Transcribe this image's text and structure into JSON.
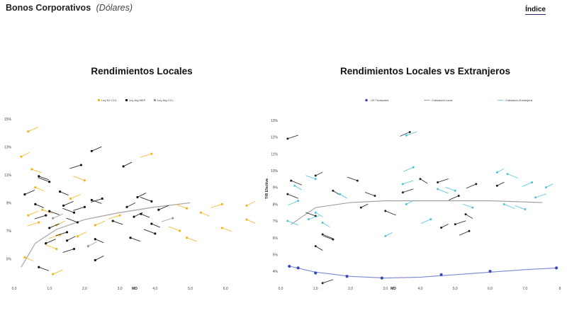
{
  "header": {
    "title": "Bonos Corporativos",
    "subtitle": "(Dólares)",
    "index_link": "Índice"
  },
  "colors": {
    "ley_ny_ccl": "#f2b61d",
    "ley_arg_mep": "#111111",
    "ley_arg_ccl": "#9a9a9a",
    "local": "#222222",
    "extranjera": "#4fc3dc",
    "treasuries": "#3b49b8"
  },
  "chart_data": [
    {
      "type": "scatter",
      "title": "Rendimientos Locales",
      "xlabel": "MD",
      "ylabel": "",
      "xlim": [
        0,
        6.8
      ],
      "ylim": [
        3.5,
        15.5
      ],
      "xticks": [
        "0,0",
        "1,0",
        "2,0",
        "3,0",
        "4,0",
        "5,0",
        "6,0"
      ],
      "yticks": [
        "5%",
        "7%",
        "9%",
        "11%",
        "13%",
        "15%"
      ],
      "grid": false,
      "legend_position": "top",
      "series": [
        {
          "name": "Ley NY CCL",
          "points": [
            {
              "x": 0.4,
              "y": 14.1
            },
            {
              "x": 3.9,
              "y": 12.5
            },
            {
              "x": 0.2,
              "y": 12.3
            },
            {
              "x": 0.5,
              "y": 11.4
            },
            {
              "x": 2.0,
              "y": 10.6
            },
            {
              "x": 0.6,
              "y": 10.1
            },
            {
              "x": 1.6,
              "y": 9.3
            },
            {
              "x": 5.9,
              "y": 8.9
            },
            {
              "x": 6.6,
              "y": 8.8
            },
            {
              "x": 0.8,
              "y": 8.5
            },
            {
              "x": 4.9,
              "y": 8.6
            },
            {
              "x": 5.3,
              "y": 8.3
            },
            {
              "x": 0.4,
              "y": 8.1
            },
            {
              "x": 0.7,
              "y": 7.6
            },
            {
              "x": 1.2,
              "y": 7.4
            },
            {
              "x": 5.9,
              "y": 7.2
            },
            {
              "x": 4.7,
              "y": 7.0
            },
            {
              "x": 6.6,
              "y": 7.8
            },
            {
              "x": 2.3,
              "y": 7.4
            },
            {
              "x": 1.3,
              "y": 6.7
            },
            {
              "x": 1.8,
              "y": 6.6
            },
            {
              "x": 4.9,
              "y": 6.5
            },
            {
              "x": 1.2,
              "y": 5.7
            },
            {
              "x": 0.3,
              "y": 5.1
            },
            {
              "x": 1.1,
              "y": 3.9
            },
            {
              "x": 3.0,
              "y": 8.1
            }
          ]
        },
        {
          "name": "Ley Arg MEP",
          "points": [
            {
              "x": 2.2,
              "y": 12.7
            },
            {
              "x": 1.9,
              "y": 11.7
            },
            {
              "x": 3.1,
              "y": 11.6
            },
            {
              "x": 0.7,
              "y": 10.9
            },
            {
              "x": 1.0,
              "y": 10.5
            },
            {
              "x": 1.3,
              "y": 9.8
            },
            {
              "x": 0.3,
              "y": 9.6
            },
            {
              "x": 2.5,
              "y": 9.3
            },
            {
              "x": 3.5,
              "y": 9.4
            },
            {
              "x": 2.2,
              "y": 9.2
            },
            {
              "x": 3.9,
              "y": 9.1
            },
            {
              "x": 0.6,
              "y": 8.9
            },
            {
              "x": 1.4,
              "y": 8.8
            },
            {
              "x": 2.0,
              "y": 8.7
            },
            {
              "x": 3.2,
              "y": 8.7
            },
            {
              "x": 1.0,
              "y": 8.4
            },
            {
              "x": 1.7,
              "y": 8.3
            },
            {
              "x": 3.6,
              "y": 8.2
            },
            {
              "x": 4.1,
              "y": 8.5
            },
            {
              "x": 0.9,
              "y": 8.1
            },
            {
              "x": 3.4,
              "y": 8.0
            },
            {
              "x": 2.8,
              "y": 7.7
            },
            {
              "x": 1.8,
              "y": 7.6
            },
            {
              "x": 3.9,
              "y": 7.5
            },
            {
              "x": 1.0,
              "y": 7.2
            },
            {
              "x": 1.5,
              "y": 6.9
            },
            {
              "x": 1.5,
              "y": 6.3
            },
            {
              "x": 3.3,
              "y": 6.5
            },
            {
              "x": 4.0,
              "y": 6.8
            },
            {
              "x": 2.3,
              "y": 6.4
            },
            {
              "x": 0.9,
              "y": 6.1
            },
            {
              "x": 1.7,
              "y": 5.7
            },
            {
              "x": 2.3,
              "y": 4.9
            },
            {
              "x": 0.7,
              "y": 4.4
            }
          ]
        },
        {
          "name": "Ley Arg CCL",
          "points": [
            {
              "x": 1.1,
              "y": 7.9
            },
            {
              "x": 4.5,
              "y": 7.9
            },
            {
              "x": 2.1,
              "y": 5.9
            }
          ]
        }
      ],
      "trend": {
        "x": [
          0.2,
          0.6,
          1.2,
          2.0,
          3.0,
          4.0,
          5.0
        ],
        "y": [
          4.4,
          6.1,
          7.1,
          7.8,
          8.3,
          8.7,
          9.0
        ]
      }
    },
    {
      "type": "scatter",
      "title": "Rendimientos Locales vs Extranjeros",
      "xlabel": "MD",
      "ylabel": "TIR Efectiva",
      "xlim": [
        0,
        8
      ],
      "ylim": [
        3.5,
        13.5
      ],
      "xticks": [
        "0,0",
        "1,0",
        "2,0",
        "3,0",
        "4,0",
        "5,0",
        "6,0",
        "7,0",
        "8"
      ],
      "yticks": [
        "4%",
        "5%",
        "6%",
        "7%",
        "8%",
        "9%",
        "10%",
        "11%",
        "12%",
        "13%"
      ],
      "grid": false,
      "legend_position": "top",
      "series": [
        {
          "name": "US Treasuries",
          "points": [
            {
              "x": 0.25,
              "y": 4.3
            },
            {
              "x": 0.5,
              "y": 4.2
            },
            {
              "x": 1.0,
              "y": 3.9
            },
            {
              "x": 1.9,
              "y": 3.7
            },
            {
              "x": 2.9,
              "y": 3.6
            },
            {
              "x": 4.6,
              "y": 3.8
            },
            {
              "x": 6.0,
              "y": 4.0
            },
            {
              "x": 7.9,
              "y": 4.2
            }
          ]
        },
        {
          "name": "Cotización Local",
          "points": [
            {
              "x": 0.2,
              "y": 11.9
            },
            {
              "x": 3.7,
              "y": 12.3
            },
            {
              "x": 1.0,
              "y": 9.7
            },
            {
              "x": 0.3,
              "y": 9.4
            },
            {
              "x": 2.2,
              "y": 9.4
            },
            {
              "x": 4.0,
              "y": 9.5
            },
            {
              "x": 4.5,
              "y": 9.3
            },
            {
              "x": 5.6,
              "y": 9.2
            },
            {
              "x": 6.2,
              "y": 9.1
            },
            {
              "x": 0.2,
              "y": 8.6
            },
            {
              "x": 2.7,
              "y": 8.5
            },
            {
              "x": 1.5,
              "y": 8.8
            },
            {
              "x": 3.5,
              "y": 8.7
            },
            {
              "x": 5.1,
              "y": 8.5
            },
            {
              "x": 2.3,
              "y": 7.8
            },
            {
              "x": 3.0,
              "y": 7.6
            },
            {
              "x": 1.0,
              "y": 7.3
            },
            {
              "x": 5.3,
              "y": 7.4
            },
            {
              "x": 5.0,
              "y": 6.8
            },
            {
              "x": 5.4,
              "y": 6.4
            },
            {
              "x": 4.6,
              "y": 6.6
            },
            {
              "x": 1.2,
              "y": 6.2
            },
            {
              "x": 1.5,
              "y": 5.9
            },
            {
              "x": 1.0,
              "y": 5.5
            },
            {
              "x": 1.2,
              "y": 3.3
            }
          ]
        },
        {
          "name": "Cotización Extranjera",
          "points": [
            {
              "x": 3.6,
              "y": 12.1
            },
            {
              "x": 3.8,
              "y": 10.2
            },
            {
              "x": 6.2,
              "y": 9.9
            },
            {
              "x": 6.5,
              "y": 9.8
            },
            {
              "x": 1.0,
              "y": 9.5
            },
            {
              "x": 0.4,
              "y": 9.1
            },
            {
              "x": 3.5,
              "y": 9.2
            },
            {
              "x": 7.2,
              "y": 9.3
            },
            {
              "x": 7.6,
              "y": 9.0
            },
            {
              "x": 4.5,
              "y": 8.9
            },
            {
              "x": 5.0,
              "y": 8.8
            },
            {
              "x": 1.7,
              "y": 8.6
            },
            {
              "x": 7.3,
              "y": 8.4
            },
            {
              "x": 0.5,
              "y": 8.2
            },
            {
              "x": 3.6,
              "y": 8.0
            },
            {
              "x": 6.4,
              "y": 8.0
            },
            {
              "x": 7.0,
              "y": 7.7
            },
            {
              "x": 1.0,
              "y": 7.5
            },
            {
              "x": 0.8,
              "y": 7.1
            },
            {
              "x": 4.3,
              "y": 7.1
            },
            {
              "x": 3.0,
              "y": 6.1
            },
            {
              "x": 0.2,
              "y": 7.0
            },
            {
              "x": 5.5,
              "y": 7.8
            },
            {
              "x": 1.2,
              "y": 6.9
            }
          ]
        }
      ],
      "trend_local": {
        "x": [
          0.3,
          1.0,
          2.0,
          3.0,
          4.0,
          5.0,
          6.0,
          7.5
        ],
        "y": [
          6.8,
          7.8,
          8.1,
          8.2,
          8.2,
          8.2,
          8.2,
          8.1
        ]
      },
      "trend_treasuries": {
        "x": [
          0.25,
          1.0,
          2.0,
          3.0,
          4.0,
          5.0,
          6.0,
          7.0,
          7.9
        ],
        "y": [
          4.3,
          3.95,
          3.7,
          3.6,
          3.65,
          3.8,
          3.95,
          4.1,
          4.2
        ]
      }
    }
  ]
}
